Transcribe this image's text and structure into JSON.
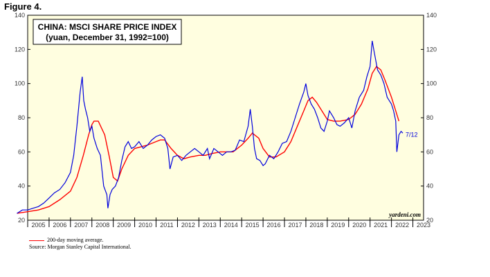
{
  "figure_label": "Figure 4.",
  "footer": {
    "legend_text": "200-day moving average.",
    "source": "Source: Morgan Stanley Capital International."
  },
  "colors": {
    "plot_bg": "#fffee0",
    "price": "#0000dd",
    "moving_average": "#ff0000"
  },
  "chart_data": {
    "type": "line",
    "title": "CHINA: MSCI SHARE PRICE INDEX",
    "subtitle": "(yuan, December 31, 1992=100)",
    "credit": "yardeni.com",
    "last_label": "7/12",
    "xlim": [
      2005,
      2023.5
    ],
    "ylim": [
      20,
      140
    ],
    "y_ticks": [
      20,
      40,
      60,
      80,
      100,
      120,
      140
    ],
    "x_tick_labels": [
      "2005",
      "2006",
      "2007",
      "2008",
      "2009",
      "2010",
      "2011",
      "2012",
      "2013",
      "2014",
      "2015",
      "2016",
      "2017",
      "2018",
      "2019",
      "2020",
      "2021",
      "2022",
      "2023"
    ],
    "grid": false,
    "series": [
      {
        "name": "MSCI share price index",
        "x": [
          2004.5,
          2004.75,
          2005.0,
          2005.25,
          2005.5,
          2005.75,
          2006.0,
          2006.25,
          2006.5,
          2006.75,
          2007.0,
          2007.15,
          2007.3,
          2007.45,
          2007.55,
          2007.62,
          2007.7,
          2007.8,
          2007.9,
          2008.0,
          2008.1,
          2008.25,
          2008.4,
          2008.55,
          2008.7,
          2008.75,
          2008.85,
          2008.95,
          2009.1,
          2009.25,
          2009.4,
          2009.55,
          2009.7,
          2009.85,
          2010.0,
          2010.2,
          2010.4,
          2010.6,
          2010.8,
          2011.0,
          2011.2,
          2011.4,
          2011.55,
          2011.65,
          2011.8,
          2012.0,
          2012.2,
          2012.4,
          2012.6,
          2012.8,
          2013.0,
          2013.2,
          2013.4,
          2013.5,
          2013.7,
          2013.9,
          2014.1,
          2014.3,
          2014.5,
          2014.7,
          2014.9,
          2015.1,
          2015.3,
          2015.4,
          2015.5,
          2015.6,
          2015.7,
          2015.85,
          2016.0,
          2016.1,
          2016.3,
          2016.5,
          2016.7,
          2016.9,
          2017.1,
          2017.3,
          2017.5,
          2017.7,
          2017.9,
          2018.0,
          2018.1,
          2018.25,
          2018.4,
          2018.55,
          2018.7,
          2018.85,
          2019.0,
          2019.1,
          2019.3,
          2019.45,
          2019.6,
          2019.8,
          2020.0,
          2020.15,
          2020.3,
          2020.5,
          2020.7,
          2020.85,
          2021.0,
          2021.1,
          2021.2,
          2021.35,
          2021.5,
          2021.65,
          2021.8,
          2022.0,
          2022.1,
          2022.2,
          2022.25,
          2022.35,
          2022.45,
          2022.53
        ],
        "values": [
          24,
          26,
          26,
          27,
          28,
          30,
          33,
          36,
          38,
          42,
          48,
          58,
          75,
          95,
          104,
          90,
          85,
          80,
          72,
          75,
          68,
          62,
          58,
          40,
          35,
          27,
          35,
          38,
          40,
          45,
          55,
          63,
          66,
          62,
          63,
          66,
          62,
          64,
          67,
          69,
          70,
          68,
          62,
          50,
          57,
          58,
          55,
          58,
          60,
          62,
          60,
          58,
          62,
          56,
          62,
          60,
          58,
          60,
          60,
          61,
          67,
          66,
          75,
          85,
          75,
          62,
          56,
          55,
          52,
          53,
          58,
          56,
          60,
          65,
          66,
          72,
          80,
          88,
          95,
          100,
          93,
          88,
          85,
          80,
          74,
          72,
          78,
          84,
          80,
          76,
          75,
          77,
          80,
          74,
          84,
          92,
          96,
          104,
          110,
          125,
          118,
          108,
          105,
          100,
          92,
          88,
          84,
          78,
          60,
          70,
          72,
          71
        ]
      },
      {
        "name": "200-day moving average",
        "x": [
          2004.5,
          2005.0,
          2005.5,
          2006.0,
          2006.5,
          2007.0,
          2007.3,
          2007.6,
          2007.85,
          2008.0,
          2008.1,
          2008.3,
          2008.6,
          2008.8,
          2009.0,
          2009.2,
          2009.4,
          2009.7,
          2010.0,
          2010.3,
          2010.6,
          2011.0,
          2011.2,
          2011.4,
          2011.7,
          2012.0,
          2012.3,
          2012.6,
          2013.0,
          2013.3,
          2013.6,
          2014.0,
          2014.3,
          2014.6,
          2015.0,
          2015.3,
          2015.5,
          2015.8,
          2016.0,
          2016.3,
          2016.6,
          2017.0,
          2017.3,
          2017.6,
          2017.9,
          2018.1,
          2018.3,
          2018.5,
          2018.8,
          2019.0,
          2019.3,
          2019.6,
          2020.0,
          2020.3,
          2020.6,
          2020.9,
          2021.1,
          2021.3,
          2021.5,
          2021.7,
          2022.0,
          2022.2,
          2022.35
        ],
        "values": [
          24,
          25,
          26,
          28,
          32,
          37,
          45,
          58,
          70,
          76,
          78,
          78,
          70,
          58,
          45,
          43,
          50,
          58,
          62,
          63,
          64,
          66,
          67,
          67,
          62,
          58,
          56,
          57,
          58,
          58,
          59,
          60,
          60,
          60,
          64,
          68,
          71,
          68,
          62,
          57,
          57,
          60,
          66,
          75,
          84,
          90,
          92,
          89,
          83,
          79,
          78,
          78,
          79,
          82,
          88,
          97,
          106,
          110,
          108,
          102,
          92,
          84,
          78
        ]
      }
    ]
  }
}
